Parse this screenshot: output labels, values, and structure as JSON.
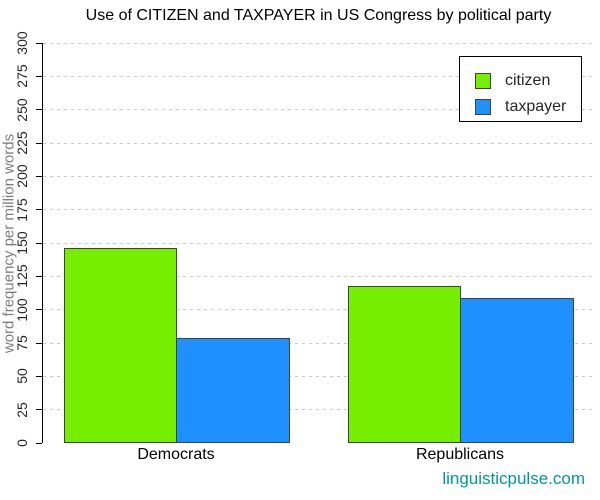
{
  "watermark": {
    "text": "linguisticpulse.com",
    "color": "#009999"
  },
  "chart_data": {
    "type": "bar",
    "title": "Use of CITIZEN and TAXPAYER in US Congress by political party",
    "ylabel": "word frequency per million words",
    "xlabel": "",
    "categories": [
      "Democrats",
      "Republicans"
    ],
    "series": [
      {
        "name": "citizen",
        "color": "#76EE00",
        "values": [
          146,
          118
        ]
      },
      {
        "name": "taxpayer",
        "color": "#1E90FF",
        "values": [
          79,
          109
        ]
      }
    ],
    "ylim": [
      0,
      300
    ],
    "ytick_step": 25,
    "grid": true,
    "grid_color": "#c9c9c9",
    "grid_style": "dashed",
    "bar_border_color": "#404040",
    "tick_label_color": "#262626",
    "axis_title_color": "#7f7f7f",
    "legend_position": "top-right",
    "legend_entries": [
      "citizen",
      "taxpayer"
    ]
  }
}
